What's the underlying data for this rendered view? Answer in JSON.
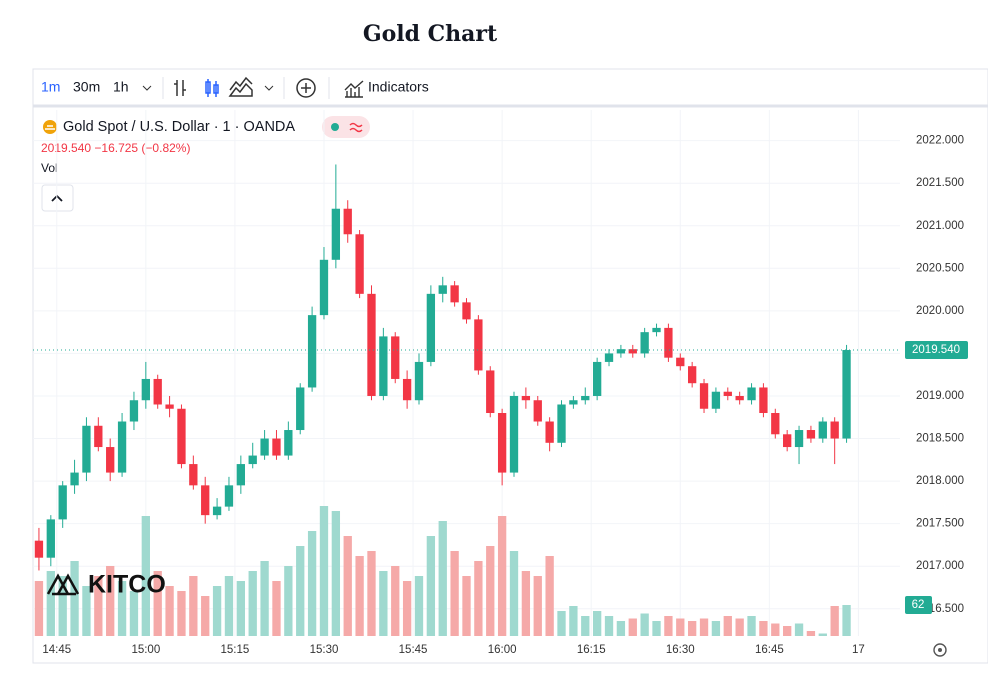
{
  "title": "Gold Chart",
  "toolbar": {
    "intervals": [
      "1m",
      "30m",
      "1h"
    ],
    "indicators": "Indicators"
  },
  "chart_data": {
    "type": "candlestick",
    "title": "Gold Spot / U.S. Dollar · 1 · OANDA",
    "subtitle": "2019.540  −16.725 (−0.82%)",
    "volume_label": "Vol",
    "watermark": "KITCO",
    "last_price_label": "2019.540",
    "x": [
      42,
      44,
      46,
      48,
      50,
      52,
      54,
      56,
      58,
      60,
      62,
      64,
      66,
      68,
      70,
      72,
      74,
      76,
      78,
      80,
      82,
      84,
      86,
      88,
      90,
      92,
      94,
      96,
      98,
      100,
      102,
      104,
      106,
      108,
      110,
      112,
      114,
      116,
      118,
      120,
      122,
      124,
      126,
      128,
      130,
      132,
      134,
      136,
      138,
      140,
      142,
      144,
      146,
      148,
      150,
      152,
      154,
      156,
      158,
      160,
      162,
      164,
      166,
      168,
      170,
      172,
      174,
      176,
      178
    ],
    "open": [
      2017.3,
      2017.1,
      2017.55,
      2017.95,
      2018.1,
      2018.65,
      2018.4,
      2018.1,
      2018.7,
      2018.95,
      2019.2,
      2018.9,
      2018.85,
      2018.2,
      2017.95,
      2017.6,
      2017.7,
      2017.95,
      2018.2,
      2018.3,
      2018.5,
      2018.3,
      2018.6,
      2019.1,
      2019.95,
      2020.6,
      2021.2,
      2020.9,
      2020.2,
      2019.0,
      2019.7,
      2019.2,
      2018.95,
      2019.4,
      2020.2,
      2020.3,
      2020.1,
      2019.9,
      2019.3,
      2018.8,
      2018.1,
      2019.0,
      2018.95,
      2018.7,
      2018.45,
      2018.9,
      2018.95,
      2019.0,
      2019.4,
      2019.5,
      2019.55,
      2019.5,
      2019.75,
      2019.8,
      2019.45,
      2019.35,
      2019.15,
      2018.85,
      2019.05,
      2019.0,
      2018.95,
      2019.1,
      2018.8,
      2018.55,
      2018.4,
      2018.6,
      2018.5,
      2018.7,
      2018.5
    ],
    "high": [
      2017.45,
      2017.6,
      2018.0,
      2018.25,
      2018.75,
      2018.75,
      2018.5,
      2018.8,
      2019.05,
      2019.4,
      2019.25,
      2019.0,
      2018.9,
      2018.3,
      2018.05,
      2017.8,
      2018.05,
      2018.3,
      2018.45,
      2018.6,
      2018.6,
      2018.7,
      2019.15,
      2020.05,
      2020.75,
      2021.72,
      2021.3,
      2020.95,
      2020.3,
      2019.8,
      2019.75,
      2019.3,
      2019.5,
      2020.3,
      2020.4,
      2020.35,
      2020.15,
      2019.95,
      2019.35,
      2018.85,
      2019.05,
      2019.1,
      2019.0,
      2018.75,
      2018.95,
      2019.0,
      2019.1,
      2019.45,
      2019.55,
      2019.6,
      2019.6,
      2019.8,
      2019.85,
      2019.85,
      2019.5,
      2019.4,
      2019.2,
      2019.1,
      2019.1,
      2019.05,
      2019.15,
      2019.15,
      2018.85,
      2018.6,
      2018.65,
      2018.65,
      2018.75,
      2018.75,
      2019.6
    ],
    "low": [
      2016.95,
      2017.0,
      2017.45,
      2017.85,
      2018.0,
      2018.35,
      2018.0,
      2018.05,
      2018.6,
      2018.85,
      2018.85,
      2018.75,
      2018.15,
      2017.9,
      2017.5,
      2017.55,
      2017.65,
      2017.85,
      2018.15,
      2018.25,
      2018.25,
      2018.25,
      2018.55,
      2019.05,
      2019.9,
      2020.5,
      2020.8,
      2020.15,
      2018.95,
      2018.95,
      2019.15,
      2018.85,
      2018.9,
      2019.35,
      2020.1,
      2020.05,
      2019.85,
      2019.25,
      2018.75,
      2017.95,
      2018.05,
      2018.85,
      2018.65,
      2018.35,
      2018.4,
      2018.85,
      2018.9,
      2018.95,
      2019.35,
      2019.45,
      2019.45,
      2019.45,
      2019.7,
      2019.4,
      2019.3,
      2019.1,
      2018.8,
      2018.8,
      2018.95,
      2018.9,
      2018.9,
      2018.75,
      2018.5,
      2018.35,
      2018.2,
      2018.45,
      2018.45,
      2018.2,
      2018.45
    ],
    "close": [
      2017.1,
      2017.55,
      2017.95,
      2018.1,
      2018.65,
      2018.4,
      2018.1,
      2018.7,
      2018.95,
      2019.2,
      2018.9,
      2018.85,
      2018.2,
      2017.95,
      2017.6,
      2017.7,
      2017.95,
      2018.2,
      2018.3,
      2018.5,
      2018.3,
      2018.6,
      2019.1,
      2019.95,
      2020.6,
      2021.2,
      2020.9,
      2020.2,
      2019.0,
      2019.7,
      2019.2,
      2018.95,
      2019.4,
      2020.2,
      2020.3,
      2020.1,
      2019.9,
      2019.3,
      2018.8,
      2018.1,
      2019.0,
      2018.95,
      2018.7,
      2018.45,
      2018.9,
      2018.95,
      2019.0,
      2019.4,
      2019.5,
      2019.55,
      2019.5,
      2019.75,
      2019.8,
      2019.45,
      2019.35,
      2019.15,
      2018.85,
      2019.05,
      2019.0,
      2018.95,
      2019.1,
      2018.8,
      2018.55,
      2018.4,
      2018.6,
      2018.5,
      2018.7,
      2018.5,
      2019.54
    ],
    "volume": [
      110,
      130,
      120,
      150,
      100,
      120,
      140,
      110,
      90,
      240,
      130,
      100,
      90,
      120,
      80,
      100,
      120,
      110,
      130,
      150,
      110,
      140,
      180,
      210,
      260,
      250,
      200,
      160,
      170,
      130,
      140,
      110,
      120,
      200,
      230,
      170,
      120,
      150,
      180,
      240,
      170,
      130,
      120,
      160,
      50,
      60,
      40,
      50,
      40,
      30,
      35,
      45,
      30,
      40,
      35,
      30,
      35,
      30,
      40,
      35,
      40,
      30,
      25,
      20,
      25,
      10,
      5,
      60,
      62
    ],
    "up_color": "#22ab94",
    "down_color": "#f23645",
    "volume_up_color": "#9fd9cf",
    "volume_down_color": "#f5a9a8",
    "xlim": [
      41,
      187
    ],
    "ylim": [
      2016.18,
      2022.36
    ],
    "volume_ylim": [
      0,
      1052
    ],
    "xticks": [
      {
        "value": 45,
        "label": "14:45"
      },
      {
        "value": 60,
        "label": "15:00"
      },
      {
        "value": 75,
        "label": "15:15"
      },
      {
        "value": 90,
        "label": "15:30"
      },
      {
        "value": 105,
        "label": "15:45"
      },
      {
        "value": 120,
        "label": "16:00"
      },
      {
        "value": 135,
        "label": "16:15"
      },
      {
        "value": 150,
        "label": "16:30"
      },
      {
        "value": 165,
        "label": "16:45"
      },
      {
        "value": 180,
        "label": "17"
      }
    ],
    "yticks": [
      {
        "value": 2016.5,
        "label": "2016.500"
      },
      {
        "value": 2017,
        "label": "2017.000"
      },
      {
        "value": 2017.5,
        "label": "2017.500"
      },
      {
        "value": 2018,
        "label": "2018.000"
      },
      {
        "value": 2018.5,
        "label": "2018.500"
      },
      {
        "value": 2019,
        "label": "2019.000"
      },
      {
        "value": 2019.5,
        "label": "2019.500"
      },
      {
        "value": 2020,
        "label": "2020.000"
      },
      {
        "value": 2020.5,
        "label": "2020.500"
      },
      {
        "value": 2021,
        "label": "2021.000"
      },
      {
        "value": 2021.5,
        "label": "2021.500"
      },
      {
        "value": 2022,
        "label": "2022.000"
      }
    ],
    "grid": true
  }
}
